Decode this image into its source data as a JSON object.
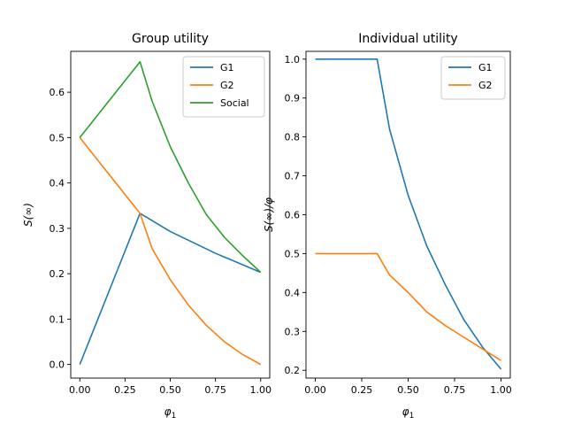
{
  "chart_data": [
    {
      "type": "line",
      "title": "Group utility",
      "xlabel": "φ1",
      "ylabel": "S(∞)",
      "xlim": [
        -0.05,
        1.05
      ],
      "ylim": [
        -0.03,
        0.69
      ],
      "xticks": [
        "0.00",
        "0.25",
        "0.50",
        "0.75",
        "1.00"
      ],
      "yticks": [
        "0.0",
        "0.1",
        "0.2",
        "0.3",
        "0.4",
        "0.5",
        "0.6"
      ],
      "grid": false,
      "legend_position": "top-right",
      "series": [
        {
          "name": "G1",
          "color": "#1f77b4",
          "x": [
            0,
            0.333,
            0.5,
            0.75,
            1.0
          ],
          "y": [
            0,
            0.333,
            0.293,
            0.245,
            0.203
          ]
        },
        {
          "name": "G2",
          "color": "#ff7f0e",
          "x": [
            0,
            0.333,
            0.4,
            0.5,
            0.6,
            0.7,
            0.8,
            0.9,
            1.0
          ],
          "y": [
            0.5,
            0.333,
            0.255,
            0.187,
            0.131,
            0.086,
            0.05,
            0.022,
            0
          ]
        },
        {
          "name": "Social",
          "color": "#2ca02c",
          "x": [
            0,
            0.333,
            0.4,
            0.5,
            0.6,
            0.7,
            0.8,
            0.9,
            1.0
          ],
          "y": [
            0.5,
            0.667,
            0.58,
            0.48,
            0.4,
            0.33,
            0.28,
            0.24,
            0.203
          ]
        }
      ]
    },
    {
      "type": "line",
      "title": "Individual utility",
      "xlabel": "φ1",
      "ylabel": "S(∞)/φ",
      "xlim": [
        -0.05,
        1.05
      ],
      "ylim": [
        0.18,
        1.02
      ],
      "xticks": [
        "0.00",
        "0.25",
        "0.50",
        "0.75",
        "1.00"
      ],
      "yticks": [
        "0.2",
        "0.3",
        "0.4",
        "0.5",
        "0.6",
        "0.7",
        "0.8",
        "0.9",
        "1.0"
      ],
      "grid": false,
      "legend_position": "top-right",
      "series": [
        {
          "name": "G1",
          "color": "#1f77b4",
          "x": [
            0,
            0.333,
            0.4,
            0.5,
            0.6,
            0.7,
            0.8,
            0.9,
            1.0
          ],
          "y": [
            1.0,
            1.0,
            0.82,
            0.65,
            0.52,
            0.42,
            0.33,
            0.26,
            0.203
          ]
        },
        {
          "name": "G2",
          "color": "#ff7f0e",
          "x": [
            0,
            0.333,
            0.4,
            0.5,
            0.6,
            0.7,
            0.8,
            0.9,
            1.0
          ],
          "y": [
            0.5,
            0.5,
            0.445,
            0.4,
            0.35,
            0.315,
            0.285,
            0.255,
            0.225
          ]
        }
      ]
    }
  ]
}
